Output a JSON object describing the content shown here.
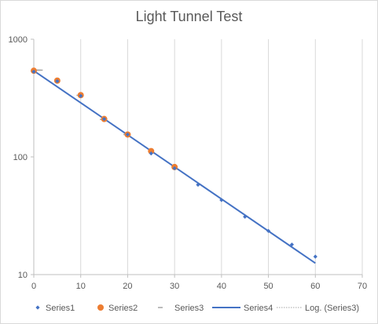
{
  "chart_data": {
    "type": "scatter",
    "title": "Light Tunnel Test",
    "xlabel": "",
    "ylabel": "",
    "xlim": [
      0,
      70
    ],
    "ylim": [
      10,
      1000
    ],
    "yscale": "log",
    "xticks": [
      0,
      10,
      20,
      30,
      40,
      50,
      60,
      70
    ],
    "yticks": [
      10,
      100,
      1000
    ],
    "grid": "vertical",
    "legend_position": "bottom",
    "series": [
      {
        "name": "Series1",
        "marker": "diamond",
        "color": "#4472c4",
        "x": [
          0,
          5,
          10,
          15,
          20,
          25,
          30,
          35,
          40,
          45,
          50,
          55,
          60
        ],
        "y": [
          530,
          440,
          330,
          210,
          155,
          107,
          80,
          58,
          43,
          31,
          23.5,
          18,
          14.2
        ]
      },
      {
        "name": "Series2",
        "marker": "circle",
        "color": "#ed7d31",
        "x": [
          0,
          5,
          10,
          15,
          20,
          25,
          30
        ],
        "y": [
          540,
          445,
          335,
          210,
          155,
          112,
          82
        ]
      },
      {
        "name": "Series3",
        "marker": "dash",
        "color": "#a5a5a5",
        "x": [
          0,
          0.3,
          0.6,
          1.0,
          1.4,
          9.6,
          10.0,
          14.6,
          15.0,
          19.6,
          20.0
        ],
        "y": [
          546,
          546,
          546,
          546,
          546,
          334,
          334,
          208,
          208,
          155,
          155
        ]
      },
      {
        "name": "Series4",
        "marker": "line",
        "color": "#4472c4",
        "x": [
          0,
          60
        ],
        "y": [
          540,
          12.5
        ]
      },
      {
        "name": "Log. (Series3)",
        "marker": "dotted-line",
        "color": "#a5a5a5"
      }
    ]
  }
}
